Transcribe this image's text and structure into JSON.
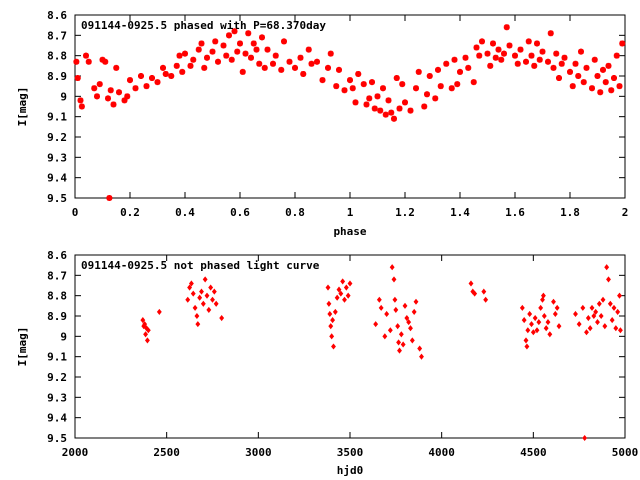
{
  "chart_data": [
    {
      "type": "scatter",
      "title": "091144-0925.5 phased with P=68.370day",
      "xlabel": "phase",
      "ylabel": "I[mag]",
      "xlim": [
        0,
        2
      ],
      "ylim": [
        9.5,
        8.6
      ],
      "y_inverted": true,
      "xticks": [
        "0",
        "0.2",
        "0.4",
        "0.6",
        "0.8",
        "1",
        "1.2",
        "1.4",
        "1.6",
        "1.8",
        "2"
      ],
      "yticks": [
        "8.6",
        "8.7",
        "8.8",
        "8.9",
        "9",
        "9.1",
        "9.2",
        "9.3",
        "9.4",
        "9.5"
      ],
      "marker": "star",
      "color": "#ff0000",
      "grid": false,
      "points": [
        [
          0.005,
          8.83
        ],
        [
          0.01,
          8.91
        ],
        [
          0.02,
          9.02
        ],
        [
          0.025,
          9.05
        ],
        [
          0.04,
          8.8
        ],
        [
          0.05,
          8.83
        ],
        [
          0.07,
          8.96
        ],
        [
          0.08,
          9.0
        ],
        [
          0.09,
          8.94
        ],
        [
          0.1,
          8.82
        ],
        [
          0.11,
          8.83
        ],
        [
          0.12,
          9.01
        ],
        [
          0.125,
          9.5
        ],
        [
          0.13,
          8.97
        ],
        [
          0.14,
          9.04
        ],
        [
          0.15,
          8.86
        ],
        [
          0.16,
          8.98
        ],
        [
          0.18,
          9.02
        ],
        [
          0.19,
          9.0
        ],
        [
          0.2,
          8.92
        ],
        [
          0.22,
          8.96
        ],
        [
          0.24,
          8.9
        ],
        [
          0.26,
          8.95
        ],
        [
          0.28,
          8.91
        ],
        [
          0.3,
          8.93
        ],
        [
          0.32,
          8.86
        ],
        [
          0.33,
          8.89
        ],
        [
          0.35,
          8.9
        ],
        [
          0.37,
          8.85
        ],
        [
          0.38,
          8.8
        ],
        [
          0.39,
          8.88
        ],
        [
          0.4,
          8.79
        ],
        [
          0.42,
          8.85
        ],
        [
          0.43,
          8.82
        ],
        [
          0.45,
          8.77
        ],
        [
          0.46,
          8.74
        ],
        [
          0.47,
          8.86
        ],
        [
          0.48,
          8.81
        ],
        [
          0.5,
          8.78
        ],
        [
          0.51,
          8.73
        ],
        [
          0.52,
          8.83
        ],
        [
          0.54,
          8.75
        ],
        [
          0.55,
          8.8
        ],
        [
          0.56,
          8.7
        ],
        [
          0.57,
          8.82
        ],
        [
          0.58,
          8.68
        ],
        [
          0.59,
          8.78
        ],
        [
          0.6,
          8.74
        ],
        [
          0.61,
          8.88
        ],
        [
          0.62,
          8.79
        ],
        [
          0.63,
          8.69
        ],
        [
          0.64,
          8.81
        ],
        [
          0.65,
          8.74
        ],
        [
          0.66,
          8.77
        ],
        [
          0.67,
          8.84
        ],
        [
          0.68,
          8.71
        ],
        [
          0.69,
          8.86
        ],
        [
          0.7,
          8.77
        ],
        [
          0.72,
          8.84
        ],
        [
          0.73,
          8.8
        ],
        [
          0.75,
          8.87
        ],
        [
          0.76,
          8.73
        ],
        [
          0.78,
          8.83
        ],
        [
          0.8,
          8.86
        ],
        [
          0.82,
          8.81
        ],
        [
          0.83,
          8.89
        ],
        [
          0.85,
          8.77
        ],
        [
          0.86,
          8.84
        ],
        [
          0.88,
          8.83
        ],
        [
          0.9,
          8.92
        ],
        [
          0.92,
          8.86
        ],
        [
          0.93,
          8.79
        ],
        [
          0.95,
          8.95
        ],
        [
          0.96,
          8.87
        ],
        [
          0.98,
          8.97
        ],
        [
          1.0,
          8.92
        ],
        [
          1.01,
          8.96
        ],
        [
          1.02,
          9.03
        ],
        [
          1.03,
          8.89
        ],
        [
          1.05,
          8.94
        ],
        [
          1.06,
          9.04
        ],
        [
          1.07,
          9.01
        ],
        [
          1.08,
          8.93
        ],
        [
          1.09,
          9.06
        ],
        [
          1.1,
          9.0
        ],
        [
          1.11,
          9.07
        ],
        [
          1.12,
          8.96
        ],
        [
          1.13,
          9.09
        ],
        [
          1.14,
          9.02
        ],
        [
          1.15,
          9.08
        ],
        [
          1.16,
          9.11
        ],
        [
          1.17,
          8.91
        ],
        [
          1.18,
          9.06
        ],
        [
          1.19,
          8.94
        ],
        [
          1.2,
          9.03
        ],
        [
          1.22,
          9.07
        ],
        [
          1.24,
          8.96
        ],
        [
          1.25,
          8.88
        ],
        [
          1.27,
          9.05
        ],
        [
          1.28,
          8.99
        ],
        [
          1.29,
          8.9
        ],
        [
          1.31,
          9.01
        ],
        [
          1.32,
          8.87
        ],
        [
          1.33,
          8.95
        ],
        [
          1.35,
          8.84
        ],
        [
          1.37,
          8.96
        ],
        [
          1.38,
          8.82
        ],
        [
          1.39,
          8.94
        ],
        [
          1.4,
          8.88
        ],
        [
          1.42,
          8.81
        ],
        [
          1.43,
          8.86
        ],
        [
          1.45,
          8.93
        ],
        [
          1.46,
          8.76
        ],
        [
          1.47,
          8.8
        ],
        [
          1.48,
          8.73
        ],
        [
          1.5,
          8.79
        ],
        [
          1.51,
          8.85
        ],
        [
          1.52,
          8.74
        ],
        [
          1.53,
          8.81
        ],
        [
          1.54,
          8.77
        ],
        [
          1.55,
          8.82
        ],
        [
          1.56,
          8.79
        ],
        [
          1.57,
          8.66
        ],
        [
          1.58,
          8.75
        ],
        [
          1.6,
          8.8
        ],
        [
          1.61,
          8.84
        ],
        [
          1.62,
          8.77
        ],
        [
          1.64,
          8.83
        ],
        [
          1.65,
          8.73
        ],
        [
          1.66,
          8.8
        ],
        [
          1.67,
          8.85
        ],
        [
          1.68,
          8.74
        ],
        [
          1.69,
          8.82
        ],
        [
          1.7,
          8.78
        ],
        [
          1.72,
          8.83
        ],
        [
          1.73,
          8.69
        ],
        [
          1.74,
          8.86
        ],
        [
          1.75,
          8.79
        ],
        [
          1.76,
          8.91
        ],
        [
          1.77,
          8.84
        ],
        [
          1.78,
          8.81
        ],
        [
          1.8,
          8.88
        ],
        [
          1.81,
          8.95
        ],
        [
          1.82,
          8.84
        ],
        [
          1.83,
          8.9
        ],
        [
          1.84,
          8.78
        ],
        [
          1.85,
          8.93
        ],
        [
          1.86,
          8.86
        ],
        [
          1.88,
          8.96
        ],
        [
          1.89,
          8.82
        ],
        [
          1.9,
          8.9
        ],
        [
          1.91,
          8.98
        ],
        [
          1.92,
          8.87
        ],
        [
          1.93,
          8.93
        ],
        [
          1.94,
          8.85
        ],
        [
          1.95,
          8.97
        ],
        [
          1.96,
          8.91
        ],
        [
          1.97,
          8.8
        ],
        [
          1.98,
          8.95
        ],
        [
          1.99,
          8.74
        ]
      ]
    },
    {
      "type": "scatter",
      "title": "091144-0925.5 not phased light curve",
      "xlabel": "hjd0",
      "ylabel": "I[mag]",
      "xlim": [
        2000,
        5000
      ],
      "ylim": [
        9.5,
        8.6
      ],
      "y_inverted": true,
      "xticks": [
        "2000",
        "2500",
        "3000",
        "3500",
        "4000",
        "4500",
        "5000"
      ],
      "yticks": [
        "8.6",
        "8.7",
        "8.8",
        "8.9",
        "9",
        "9.1",
        "9.2",
        "9.3",
        "9.4",
        "9.5"
      ],
      "marker": "diamond",
      "color": "#ff0000",
      "grid": false,
      "points": [
        [
          2370,
          8.92
        ],
        [
          2375,
          8.95
        ],
        [
          2380,
          8.94
        ],
        [
          2385,
          8.99
        ],
        [
          2390,
          8.96
        ],
        [
          2395,
          9.02
        ],
        [
          2400,
          8.97
        ],
        [
          2460,
          8.88
        ],
        [
          2615,
          8.82
        ],
        [
          2625,
          8.76
        ],
        [
          2635,
          8.74
        ],
        [
          2645,
          8.79
        ],
        [
          2655,
          8.86
        ],
        [
          2665,
          8.9
        ],
        [
          2670,
          8.94
        ],
        [
          2680,
          8.81
        ],
        [
          2690,
          8.78
        ],
        [
          2700,
          8.84
        ],
        [
          2710,
          8.72
        ],
        [
          2720,
          8.8
        ],
        [
          2730,
          8.87
        ],
        [
          2740,
          8.76
        ],
        [
          2750,
          8.82
        ],
        [
          2760,
          8.78
        ],
        [
          2770,
          8.84
        ],
        [
          2800,
          8.91
        ],
        [
          3380,
          8.76
        ],
        [
          3385,
          8.84
        ],
        [
          3390,
          8.89
        ],
        [
          3395,
          8.95
        ],
        [
          3400,
          9.0
        ],
        [
          3405,
          8.92
        ],
        [
          3410,
          9.05
        ],
        [
          3420,
          8.88
        ],
        [
          3430,
          8.81
        ],
        [
          3440,
          8.77
        ],
        [
          3450,
          8.79
        ],
        [
          3460,
          8.73
        ],
        [
          3470,
          8.82
        ],
        [
          3480,
          8.76
        ],
        [
          3490,
          8.8
        ],
        [
          3500,
          8.74
        ],
        [
          3640,
          8.94
        ],
        [
          3660,
          8.82
        ],
        [
          3670,
          8.86
        ],
        [
          3690,
          9.0
        ],
        [
          3700,
          8.89
        ],
        [
          3720,
          8.97
        ],
        [
          3730,
          8.66
        ],
        [
          3740,
          8.72
        ],
        [
          3745,
          8.82
        ],
        [
          3750,
          8.87
        ],
        [
          3760,
          8.95
        ],
        [
          3765,
          9.03
        ],
        [
          3770,
          9.07
        ],
        [
          3780,
          8.99
        ],
        [
          3790,
          9.04
        ],
        [
          3800,
          8.85
        ],
        [
          3810,
          8.91
        ],
        [
          3820,
          8.93
        ],
        [
          3830,
          8.96
        ],
        [
          3840,
          9.02
        ],
        [
          3850,
          8.88
        ],
        [
          3860,
          8.83
        ],
        [
          3880,
          9.06
        ],
        [
          3890,
          9.1
        ],
        [
          4160,
          8.74
        ],
        [
          4170,
          8.78
        ],
        [
          4180,
          8.79
        ],
        [
          4230,
          8.78
        ],
        [
          4240,
          8.82
        ],
        [
          4440,
          8.86
        ],
        [
          4450,
          8.92
        ],
        [
          4460,
          9.02
        ],
        [
          4465,
          9.05
        ],
        [
          4470,
          8.97
        ],
        [
          4480,
          8.89
        ],
        [
          4490,
          8.94
        ],
        [
          4500,
          8.98
        ],
        [
          4510,
          8.91
        ],
        [
          4520,
          8.97
        ],
        [
          4530,
          8.93
        ],
        [
          4540,
          8.86
        ],
        [
          4550,
          8.82
        ],
        [
          4555,
          8.8
        ],
        [
          4560,
          8.9
        ],
        [
          4570,
          8.96
        ],
        [
          4580,
          8.93
        ],
        [
          4590,
          8.99
        ],
        [
          4610,
          8.83
        ],
        [
          4620,
          8.89
        ],
        [
          4630,
          8.86
        ],
        [
          4640,
          8.95
        ],
        [
          4730,
          8.89
        ],
        [
          4750,
          8.94
        ],
        [
          4770,
          8.86
        ],
        [
          4780,
          9.5
        ],
        [
          4790,
          8.98
        ],
        [
          4800,
          8.91
        ],
        [
          4810,
          8.96
        ],
        [
          4820,
          8.86
        ],
        [
          4830,
          8.9
        ],
        [
          4840,
          8.88
        ],
        [
          4850,
          8.93
        ],
        [
          4860,
          8.84
        ],
        [
          4870,
          8.9
        ],
        [
          4880,
          8.82
        ],
        [
          4890,
          8.95
        ],
        [
          4900,
          8.66
        ],
        [
          4910,
          8.72
        ],
        [
          4920,
          8.84
        ],
        [
          4930,
          8.92
        ],
        [
          4940,
          8.86
        ],
        [
          4950,
          8.96
        ],
        [
          4960,
          8.88
        ],
        [
          4970,
          8.8
        ],
        [
          4975,
          8.97
        ]
      ]
    }
  ]
}
